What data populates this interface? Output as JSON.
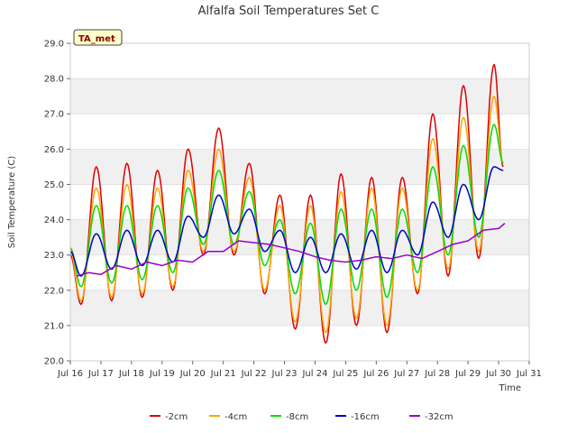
{
  "chart_data": {
    "type": "line",
    "title": "Alfalfa Soil Temperatures Set C",
    "xlabel": "Time",
    "ylabel": "Soil Temperature (C)",
    "badge": "TA_met",
    "ylim": [
      20.0,
      29.0
    ],
    "xlim": [
      16,
      31
    ],
    "y_ticks": [
      "20.0",
      "21.0",
      "22.0",
      "23.0",
      "24.0",
      "25.0",
      "26.0",
      "27.0",
      "28.0",
      "29.0"
    ],
    "x_ticks": [
      "Jul 16",
      "Jul 17",
      "Jul 18",
      "Jul 19",
      "Jul 20",
      "Jul 21",
      "Jul 22",
      "Jul 23",
      "Jul 24",
      "Jul 25",
      "Jul 26",
      "Jul 27",
      "Jul 28",
      "Jul 29",
      "Jul 30",
      "Jul 31"
    ],
    "grid": "horizontal alternating bands",
    "legend_position": "bottom",
    "series": [
      {
        "name": "-2cm",
        "color": "#dd0000",
        "mins": [
          21.6,
          21.7,
          21.8,
          22.0,
          23.0,
          23.0,
          21.9,
          20.9,
          20.5,
          21.0,
          20.8,
          21.9,
          22.4,
          22.9
        ],
        "maxs": [
          25.5,
          25.6,
          25.4,
          26.0,
          26.6,
          25.6,
          24.7,
          24.7,
          25.3,
          25.2,
          25.2,
          27.0,
          27.8,
          28.4
        ],
        "start": 23.0,
        "end": 25.5
      },
      {
        "name": "-4cm",
        "color": "#ffa500",
        "mins": [
          21.7,
          21.8,
          21.9,
          22.1,
          23.1,
          23.1,
          22.0,
          21.1,
          20.8,
          21.2,
          21.0,
          22.0,
          22.6,
          23.1
        ],
        "maxs": [
          24.9,
          25.0,
          24.9,
          25.4,
          26.0,
          25.2,
          24.4,
          24.4,
          24.8,
          24.9,
          24.9,
          26.3,
          26.9,
          27.5
        ],
        "start": 23.1,
        "end": 25.6
      },
      {
        "name": "-8cm",
        "color": "#00dd00",
        "mins": [
          22.1,
          22.2,
          22.3,
          22.5,
          23.3,
          23.3,
          22.7,
          21.9,
          21.6,
          22.0,
          21.8,
          22.5,
          23.0,
          23.5
        ],
        "maxs": [
          24.4,
          24.4,
          24.4,
          24.9,
          25.4,
          24.8,
          24.0,
          23.9,
          24.3,
          24.3,
          24.3,
          25.5,
          26.1,
          26.7
        ],
        "start": 23.2,
        "end": 25.6
      },
      {
        "name": "-16cm",
        "color": "#0000cc",
        "mins": [
          22.4,
          22.6,
          22.7,
          22.8,
          23.5,
          23.6,
          23.1,
          22.5,
          22.5,
          22.6,
          22.5,
          23.0,
          23.5,
          24.0
        ],
        "maxs": [
          23.6,
          23.7,
          23.7,
          24.1,
          24.7,
          24.3,
          23.7,
          23.5,
          23.6,
          23.7,
          23.7,
          24.5,
          25.0,
          25.5
        ],
        "start": 23.1,
        "end": 25.4
      },
      {
        "name": "-32cm",
        "color": "#9900cc",
        "x": [
          16.2,
          16.6,
          17.0,
          17.5,
          18.0,
          18.5,
          19.0,
          19.5,
          20.0,
          20.5,
          21.0,
          21.5,
          22.0,
          22.5,
          23.0,
          23.5,
          24.0,
          24.5,
          25.0,
          25.5,
          26.0,
          26.5,
          27.0,
          27.5,
          28.0,
          28.5,
          29.0,
          29.5,
          30.0,
          30.2
        ],
        "values": [
          22.4,
          22.5,
          22.45,
          22.7,
          22.6,
          22.8,
          22.7,
          22.85,
          22.8,
          23.1,
          23.1,
          23.4,
          23.35,
          23.3,
          23.2,
          23.1,
          22.95,
          22.85,
          22.8,
          22.85,
          22.95,
          22.9,
          23.0,
          22.9,
          23.1,
          23.3,
          23.4,
          23.7,
          23.75,
          23.9
        ]
      }
    ]
  }
}
